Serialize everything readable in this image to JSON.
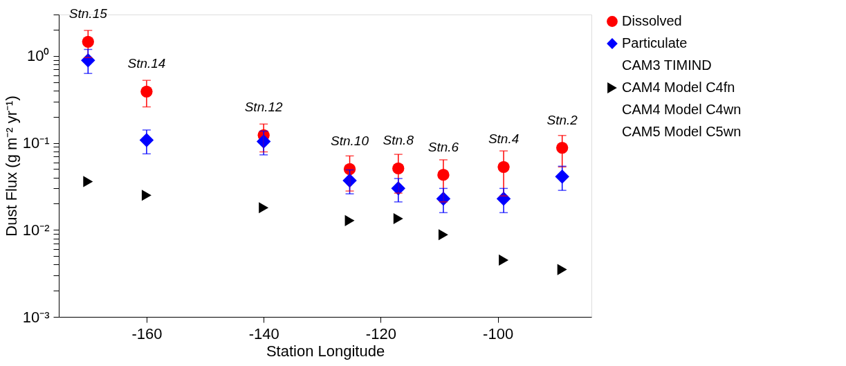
{
  "chart_data": {
    "type": "scatter",
    "xlabel": "Station Longitude",
    "ylabel": "Dust Flux (g m⁻² yr⁻¹)",
    "x": [
      -170,
      -160,
      -140,
      -125.3,
      -117,
      -109.3,
      -99,
      -89
    ],
    "series": [
      {
        "name": "Dissolved",
        "color": "#ff0000",
        "marker": "circle",
        "values": [
          1.46,
          0.39,
          0.123,
          0.05,
          0.051,
          0.043,
          0.053,
          0.088
        ],
        "errors": [
          [
            0.96,
            1.97
          ],
          [
            0.26,
            0.525
          ],
          [
            0.079,
            0.165
          ],
          [
            0.028,
            0.071
          ],
          [
            0.0265,
            0.074
          ],
          [
            0.021,
            0.064
          ],
          [
            0.0246,
            0.081
          ],
          [
            0.053,
            0.122
          ]
        ]
      },
      {
        "name": "Particulate",
        "color": "#0000ff",
        "marker": "diamond",
        "values": [
          0.89,
          0.108,
          0.104,
          0.037,
          0.03,
          0.0228,
          0.0228,
          0.041
        ],
        "errors": [
          [
            0.63,
            1.19
          ],
          [
            0.075,
            0.141
          ],
          [
            0.073,
            0.137
          ],
          [
            0.026,
            0.049
          ],
          [
            0.021,
            0.039
          ],
          [
            0.0158,
            0.03
          ],
          [
            0.0158,
            0.03
          ],
          [
            0.0285,
            0.054
          ]
        ]
      },
      {
        "name": "CAM3 TIMIND",
        "marker": "none",
        "values": [
          null,
          null,
          null,
          null,
          null,
          null,
          null,
          null
        ]
      },
      {
        "name": "CAM4 Model C4fn",
        "color": "#000000",
        "marker": "triangle",
        "values": [
          0.036,
          0.025,
          0.018,
          0.0128,
          0.0135,
          0.0088,
          0.0045,
          0.0035
        ]
      },
      {
        "name": "CAM4 Model C4wn",
        "marker": "none",
        "values": [
          null,
          null,
          null,
          null,
          null,
          null,
          null,
          null
        ]
      },
      {
        "name": "CAM5 Model C5wn",
        "marker": "none",
        "values": [
          null,
          null,
          null,
          null,
          null,
          null,
          null,
          null
        ]
      }
    ],
    "annotations": [
      {
        "text": "Stn.15",
        "x": -170,
        "y": 1.46
      },
      {
        "text": "Stn.14",
        "x": -160,
        "y": 0.39
      },
      {
        "text": "Stn.12",
        "x": -140,
        "y": 0.123
      },
      {
        "text": "Stn.10",
        "x": -125.3,
        "y": 0.05
      },
      {
        "text": "Stn.8",
        "x": -117,
        "y": 0.051
      },
      {
        "text": "Stn.6",
        "x": -109.3,
        "y": 0.043
      },
      {
        "text": "Stn.4",
        "x": -99,
        "y": 0.053
      },
      {
        "text": "Stn.2",
        "x": -89,
        "y": 0.088
      }
    ],
    "xlim": [
      -175,
      -84
    ],
    "xticks": [
      -160,
      -140,
      -120,
      -100
    ],
    "ylim": [
      0.001,
      3
    ],
    "log": true,
    "yticks": [
      {
        "value": 0.001,
        "label": "10⁻³"
      },
      {
        "value": 0.002,
        "label": null
      },
      {
        "value": 0.003,
        "label": null
      },
      {
        "value": 0.004,
        "label": null
      },
      {
        "value": 0.005,
        "label": null
      },
      {
        "value": 0.006,
        "label": null
      },
      {
        "value": 0.007,
        "label": null
      },
      {
        "value": 0.008,
        "label": null
      },
      {
        "value": 0.009,
        "label": null
      },
      {
        "value": 0.01,
        "label": "10⁻²"
      },
      {
        "value": 0.02,
        "label": null
      },
      {
        "value": 0.03,
        "label": null
      },
      {
        "value": 0.04,
        "label": null
      },
      {
        "value": 0.05,
        "label": null
      },
      {
        "value": 0.06,
        "label": null
      },
      {
        "value": 0.07,
        "label": null
      },
      {
        "value": 0.08,
        "label": null
      },
      {
        "value": 0.09,
        "label": null
      },
      {
        "value": 0.1,
        "label": "10⁻¹"
      },
      {
        "value": 0.2,
        "label": null
      },
      {
        "value": 0.3,
        "label": null
      },
      {
        "value": 0.4,
        "label": null
      },
      {
        "value": 0.5,
        "label": null
      },
      {
        "value": 0.6,
        "label": null
      },
      {
        "value": 0.7,
        "label": null
      },
      {
        "value": 0.8,
        "label": null
      },
      {
        "value": 0.9,
        "label": null
      },
      {
        "value": 1,
        "label": "10⁰"
      },
      {
        "value": 2,
        "label": null
      },
      {
        "value": 3,
        "label": null
      }
    ],
    "grid": false,
    "legend": "right"
  }
}
